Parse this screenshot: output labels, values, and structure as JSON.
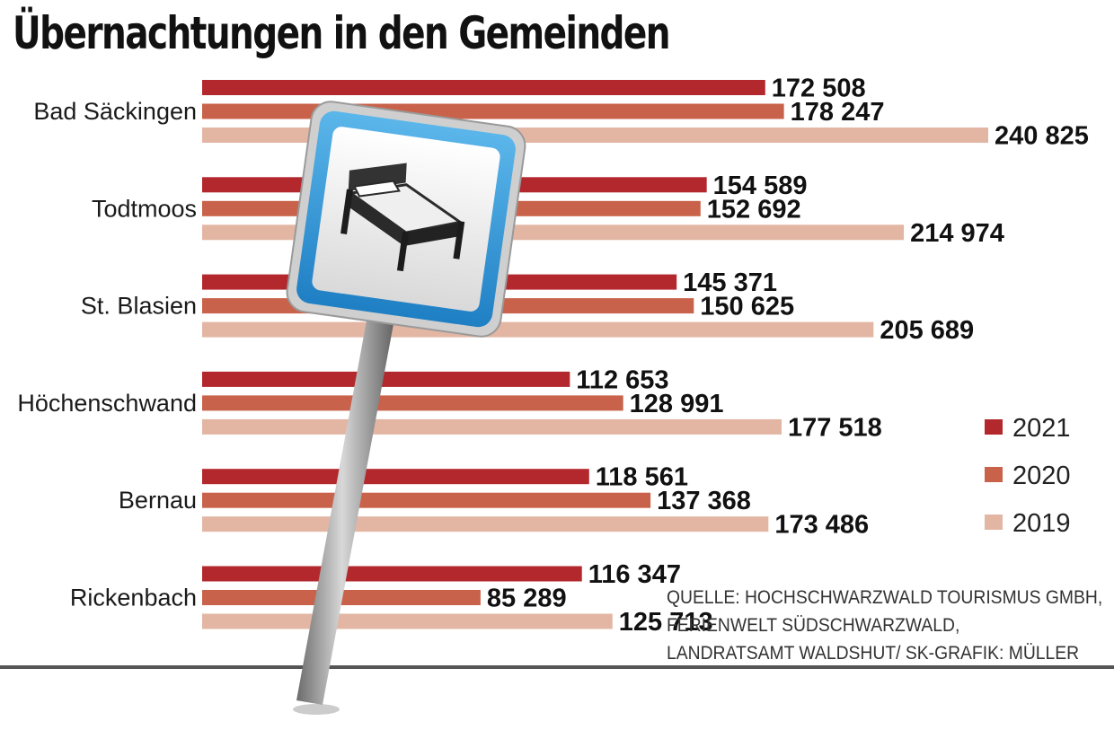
{
  "chart_data": {
    "type": "bar",
    "orientation": "horizontal",
    "title": "Übernachtungen in den Gemeinden",
    "categories": [
      "Bad Säckingen",
      "Todtmoos",
      "St. Blasien",
      "Höchenschwand",
      "Bernau",
      "Rickenbach"
    ],
    "series": [
      {
        "name": "2021",
        "color": "#b3282d",
        "values": [
          172508,
          154589,
          145371,
          112653,
          118561,
          116347
        ],
        "labels": [
          "172 508",
          "154 589",
          "145 371",
          "112 653",
          "118 561",
          "116 347"
        ]
      },
      {
        "name": "2020",
        "color": "#c9624a",
        "values": [
          178247,
          152692,
          150625,
          128991,
          137368,
          85289
        ],
        "labels": [
          "178 247",
          "152 692",
          "150 625",
          "128 991",
          "137 368",
          "85 289"
        ]
      },
      {
        "name": "2019",
        "color": "#e3b6a4",
        "values": [
          240825,
          214974,
          205689,
          177518,
          173486,
          125713
        ],
        "labels": [
          "240 825",
          "214 974",
          "205 689",
          "177 518",
          "173 486",
          "125 713"
        ]
      }
    ],
    "xlim": [
      0,
      240825
    ],
    "grid": false,
    "legend_position": "right"
  },
  "source_lines": [
    "QUELLE: HOCHSCHWARZWALD TOURISMUS GMBH,",
    "FERIENWELT SÜDSCHWARZWALD,",
    "LANDRATSAMT WALDSHUT/ SK-GRAFIK: MÜLLER"
  ],
  "illustration": {
    "icon": "bed-sign-icon",
    "sign_border_color": "#3a9ed8"
  }
}
